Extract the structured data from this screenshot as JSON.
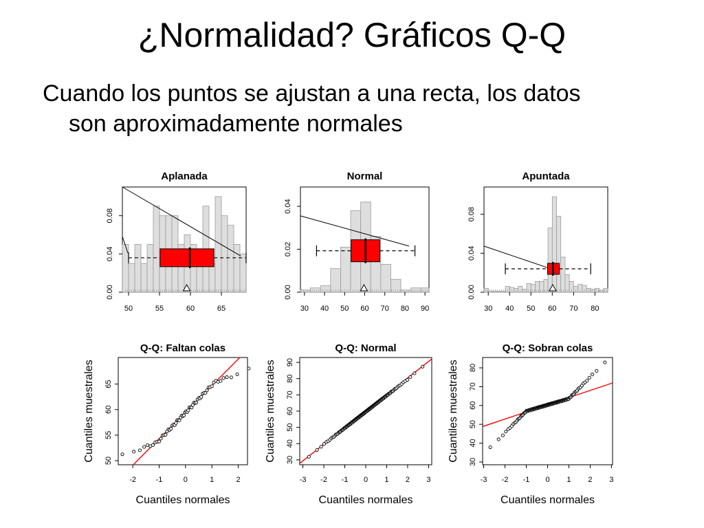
{
  "title": "¿Normalidad? Gráficos Q-Q",
  "body": {
    "line1": "Cuando los puntos se ajustan a una recta, los datos",
    "line2": "son aproximadamente normales"
  },
  "colors": {
    "box_fill": "#ff0000",
    "bar_fill": "#dedede",
    "bar_stroke": "#9a9a9a",
    "qq_line": "#ff0000"
  },
  "chart_data": [
    {
      "type": "bar",
      "title": "Aplanada",
      "xticks": [
        "50",
        "55",
        "60",
        "65"
      ],
      "xlim": [
        49,
        69
      ],
      "yticks": [
        "0.00",
        "0.04",
        "0.08"
      ],
      "ylim": [
        0,
        0.11
      ],
      "bins": [
        [
          49,
          50
        ],
        [
          50,
          51
        ],
        [
          51,
          52
        ],
        [
          52,
          53
        ],
        [
          53,
          54
        ],
        [
          54,
          55
        ],
        [
          55,
          56
        ],
        [
          56,
          57
        ],
        [
          57,
          58
        ],
        [
          58,
          59
        ],
        [
          59,
          60
        ],
        [
          60,
          61
        ],
        [
          61,
          62
        ],
        [
          62,
          63
        ],
        [
          63,
          64
        ],
        [
          64,
          65
        ],
        [
          65,
          66
        ],
        [
          66,
          67
        ],
        [
          67,
          68
        ],
        [
          68,
          69
        ]
      ],
      "density": [
        0.05,
        0.03,
        0.05,
        0.03,
        0.05,
        0.09,
        0.08,
        0.08,
        0.08,
        0.05,
        0.06,
        0.05,
        0.03,
        0.09,
        0.03,
        0.1,
        0.08,
        0.07,
        0.05,
        0.04
      ],
      "boxplot": {
        "min": 50,
        "q1": 55.1,
        "median": 59.9,
        "q3": 63.8,
        "max": 69,
        "mean": 59.4,
        "level": 0.036
      }
    },
    {
      "type": "bar",
      "title": "Normal",
      "xticks": [
        "30",
        "40",
        "50",
        "60",
        "70",
        "80",
        "90"
      ],
      "xlim": [
        28,
        92
      ],
      "yticks": [
        "0.00",
        "0.02",
        "0.04"
      ],
      "ylim": [
        0,
        0.049
      ],
      "bins": [
        [
          28,
          33
        ],
        [
          33,
          38
        ],
        [
          38,
          43
        ],
        [
          43,
          48
        ],
        [
          48,
          53
        ],
        [
          53,
          58
        ],
        [
          58,
          63
        ],
        [
          63,
          68
        ],
        [
          68,
          73
        ],
        [
          73,
          78
        ],
        [
          78,
          83
        ],
        [
          83,
          88
        ],
        [
          88,
          92
        ]
      ],
      "density": [
        0.001,
        0.002,
        0.003,
        0.011,
        0.021,
        0.038,
        0.042,
        0.026,
        0.013,
        0.006,
        0.001,
        0.002,
        0.002
      ],
      "boxplot": {
        "min": 36,
        "q1": 53.2,
        "median": 60.4,
        "q3": 67.5,
        "max": 85,
        "mean": 59.6,
        "level": 0.0193
      }
    },
    {
      "type": "bar",
      "title": "Apuntada",
      "xticks": [
        "30",
        "40",
        "50",
        "60",
        "70",
        "80"
      ],
      "xlim": [
        28,
        86
      ],
      "yticks": [
        "0.00",
        "0.04",
        "0.08"
      ],
      "ylim": [
        0,
        0.108
      ],
      "bins": [
        [
          28,
          30
        ],
        [
          30,
          32
        ],
        [
          32,
          34
        ],
        [
          34,
          36
        ],
        [
          36,
          38
        ],
        [
          38,
          40
        ],
        [
          40,
          42
        ],
        [
          42,
          44
        ],
        [
          44,
          46
        ],
        [
          46,
          48
        ],
        [
          48,
          50
        ],
        [
          50,
          52
        ],
        [
          52,
          54
        ],
        [
          54,
          56
        ],
        [
          56,
          58
        ],
        [
          58,
          60
        ],
        [
          60,
          62
        ],
        [
          62,
          64
        ],
        [
          64,
          66
        ],
        [
          66,
          68
        ],
        [
          68,
          70
        ],
        [
          70,
          72
        ],
        [
          72,
          74
        ],
        [
          74,
          76
        ],
        [
          76,
          78
        ],
        [
          78,
          80
        ],
        [
          80,
          82
        ],
        [
          82,
          84
        ],
        [
          84,
          86
        ]
      ],
      "density": [
        0.004,
        0.001,
        0.001,
        0.001,
        0.001,
        0.006,
        0.005,
        0.004,
        0.006,
        0.003,
        0.009,
        0.008,
        0.011,
        0.011,
        0.013,
        0.066,
        0.098,
        0.078,
        0.036,
        0.018,
        0.011,
        0.006,
        0.008,
        0.007,
        0.004,
        0.003,
        0.004,
        0.002,
        0.004
      ],
      "boxplot": {
        "min": 38,
        "q1": 57.8,
        "median": 60.3,
        "q3": 63.3,
        "max": 78,
        "mean": 60.2,
        "level": 0.024
      }
    },
    {
      "type": "scatter",
      "title": "Q-Q: Faltan colas",
      "xlabel": "Cuantiles normales",
      "ylabel": "Cuantiles muestrales",
      "xticks": [
        "-2",
        "-1",
        "0",
        "1",
        "2"
      ],
      "xlim": [
        -2.55,
        2.35
      ],
      "yticks": [
        "50",
        "55",
        "60",
        "65"
      ],
      "ylim": [
        49.2,
        70.2
      ],
      "line": {
        "intercept": 59.5,
        "slope": 5.2
      },
      "points_s_shape": {
        "n": 60,
        "mean": 59.4,
        "core_slope": 5.4,
        "tail_start": 1.1,
        "tail_slope": 1.9
      }
    },
    {
      "type": "scatter",
      "title": "Q-Q: Normal",
      "xlabel": "Cuantiles normales",
      "ylabel": "Cuantiles muestrales",
      "xticks": [
        "-3",
        "-2",
        "-1",
        "0",
        "1",
        "2",
        "3"
      ],
      "xlim": [
        -3.15,
        3.15
      ],
      "yticks": [
        "30",
        "40",
        "50",
        "60",
        "70",
        "80",
        "90"
      ],
      "ylim": [
        27,
        93
      ],
      "line": {
        "intercept": 60,
        "slope": 10.2
      },
      "points_s_shape": {
        "n": 150,
        "mean": 59.6,
        "core_slope": 10.0,
        "tail_start": 2.2,
        "tail_slope": 11.5
      }
    },
    {
      "type": "scatter",
      "title": "Q-Q: Sobran colas",
      "xlabel": "Cuantiles normales",
      "ylabel": "Cuantiles muestrales",
      "xticks": [
        "-3",
        "-2",
        "-1",
        "0",
        "1",
        "2",
        "3"
      ],
      "xlim": [
        -3.05,
        3.05
      ],
      "yticks": [
        "30",
        "40",
        "50",
        "60",
        "70",
        "80"
      ],
      "ylim": [
        28.5,
        85.5
      ],
      "line": {
        "intercept": 60.4,
        "slope": 3.8
      },
      "points_s_shape": {
        "n": 140,
        "mean": 60.3,
        "core_slope": 3.3,
        "tail_start": 1.0,
        "tail_slope": 11.5
      }
    }
  ]
}
